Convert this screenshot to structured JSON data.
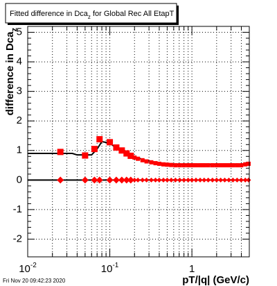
{
  "chart_data": {
    "type": "scatter",
    "title": "Fitted difference in Dca",
    "title_sub": "z",
    "title_end": " for Global Rec All EtapT",
    "y_label": "difference in Dca",
    "y_label_sub": "z",
    "x_label": "pT/|q| (GeV/c)",
    "footer": "Fri Nov 20 09:42:23 2020",
    "x_log": true,
    "grid": true,
    "xlim": [
      0.01,
      5
    ],
    "ylim": [
      -2.6,
      5.2
    ],
    "xticks": [
      {
        "value": 0.01,
        "label": "10",
        "exponent": "-2"
      },
      {
        "value": 0.1,
        "label": "10",
        "exponent": "-1"
      },
      1
    ],
    "xminorticks": [
      0.02,
      0.03,
      0.04,
      0.05,
      0.06,
      0.07,
      0.08,
      0.09,
      0.2,
      0.3,
      0.4,
      0.5,
      0.6,
      0.7,
      0.8,
      0.9,
      2,
      3,
      4
    ],
    "yticks": [
      -2,
      -1,
      0,
      1,
      2,
      3,
      4,
      5
    ],
    "series": [
      {
        "color": "#000000",
        "marker": "line",
        "x": [
          0.01,
          0.035,
          0.04,
          0.06,
          0.07,
          0.08,
          0.1,
          0.12,
          0.14,
          0.16,
          0.18,
          0.2,
          0.22,
          0.25,
          0.28,
          0.32,
          0.36,
          0.4,
          0.45,
          0.5,
          0.56,
          0.63,
          0.71,
          0.8,
          0.9,
          1.0,
          1.12,
          1.26,
          1.41,
          1.58,
          1.78,
          2.0,
          2.24,
          2.51,
          2.82,
          3.16,
          3.55,
          3.98,
          4.47,
          4.9
        ],
        "values": [
          0.9,
          0.9,
          0.85,
          0.85,
          1.05,
          1.3,
          1.25,
          1.08,
          0.98,
          0.9,
          0.84,
          0.79,
          0.75,
          0.7,
          0.66,
          0.62,
          0.59,
          0.57,
          0.55,
          0.54,
          0.53,
          0.52,
          0.52,
          0.52,
          0.52,
          0.52,
          0.52,
          0.52,
          0.52,
          0.52,
          0.52,
          0.52,
          0.52,
          0.52,
          0.52,
          0.52,
          0.52,
          0.52,
          0.54,
          0.56
        ]
      },
      {
        "color": "#000000",
        "marker": "line",
        "x": [
          0.01,
          4.9
        ],
        "values": [
          0,
          0
        ]
      },
      {
        "color": "#ff0000",
        "marker": "square",
        "x": [
          0.025,
          0.05,
          0.065,
          0.075,
          0.1,
          0.12,
          0.14,
          0.16,
          0.18,
          0.2,
          0.22,
          0.25,
          0.28,
          0.32,
          0.36,
          0.4,
          0.45,
          0.5,
          0.56,
          0.63,
          0.71,
          0.8,
          0.9,
          1.0,
          1.12,
          1.26,
          1.41,
          1.58,
          1.78,
          2.0,
          2.24,
          2.51,
          2.82,
          3.16,
          3.55,
          3.98,
          4.47,
          4.9
        ],
        "values": [
          0.95,
          0.83,
          1.05,
          1.38,
          1.28,
          1.1,
          1.0,
          0.9,
          0.82,
          0.76,
          0.72,
          0.67,
          0.63,
          0.6,
          0.57,
          0.55,
          0.53,
          0.52,
          0.51,
          0.5,
          0.5,
          0.5,
          0.5,
          0.5,
          0.5,
          0.5,
          0.5,
          0.5,
          0.5,
          0.5,
          0.5,
          0.5,
          0.5,
          0.5,
          0.5,
          0.5,
          0.53,
          0.55
        ]
      },
      {
        "color": "#ff0000",
        "marker": "diamond",
        "x": [
          0.025,
          0.05,
          0.065,
          0.075,
          0.1,
          0.12,
          0.14,
          0.16,
          0.18,
          0.2,
          0.22,
          0.25,
          0.28,
          0.32,
          0.36,
          0.4,
          0.45,
          0.5,
          0.56,
          0.63,
          0.71,
          0.8,
          0.9,
          1.0,
          1.12,
          1.26,
          1.41,
          1.58,
          1.78,
          2.0,
          2.24,
          2.51,
          2.82,
          3.16,
          3.55,
          3.98,
          4.47,
          4.9
        ],
        "values": [
          0,
          0,
          0,
          0,
          0,
          0,
          0,
          0,
          0,
          0,
          0,
          0,
          0,
          0,
          0,
          0,
          0,
          0,
          0,
          0,
          0,
          0,
          0,
          0,
          0,
          0,
          0,
          0,
          0,
          0,
          0,
          0,
          0,
          0,
          0,
          0,
          0,
          0
        ]
      }
    ]
  }
}
